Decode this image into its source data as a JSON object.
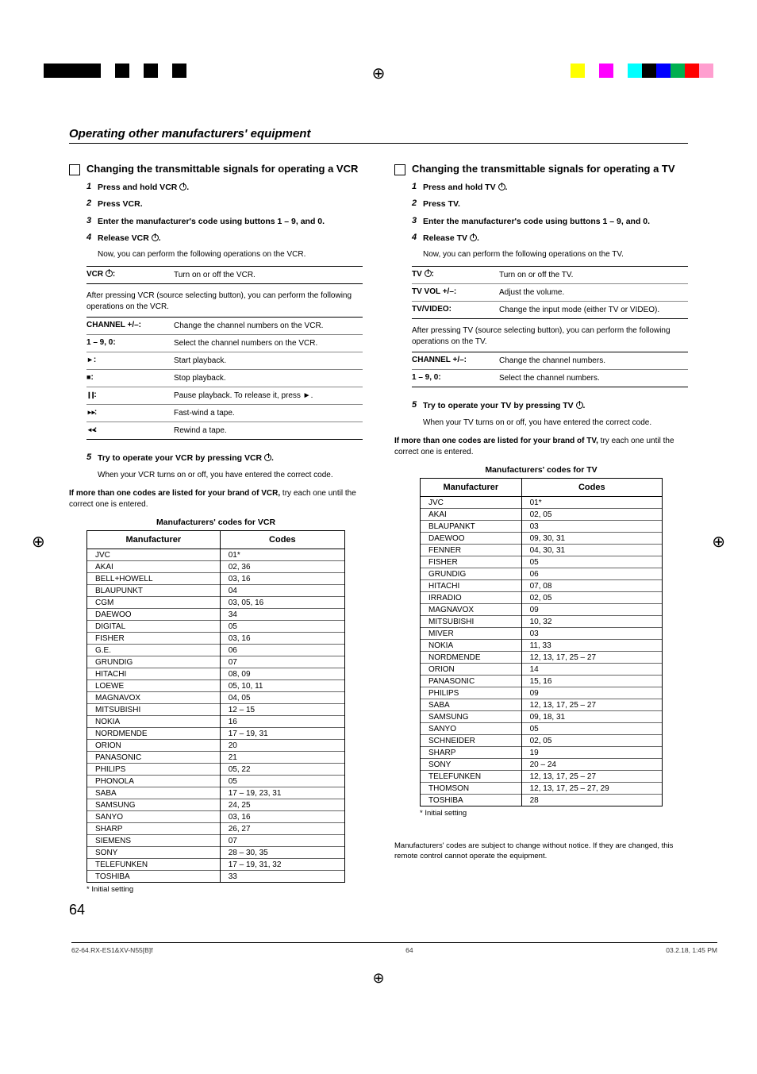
{
  "page": {
    "header": "Operating other manufacturers' equipment",
    "number": "64",
    "footer_file": "62-64.RX-ES1&XV-N55[B]f",
    "footer_page": "64",
    "footer_date": "03.2.18, 1:45 PM"
  },
  "print_bar_left_colors": [
    "#000000",
    "#000000",
    "#000000",
    "#000000",
    "#ffffff",
    "#000000",
    "#ffffff",
    "#000000",
    "#ffffff",
    "#000000"
  ],
  "print_bar_right_colors": [
    "#ffff00",
    "#ffffff",
    "#ff00ff",
    "#ffffff",
    "#00ffff",
    "#000000",
    "#0000ff",
    "#00b050",
    "#ff0000",
    "#ff9ecf"
  ],
  "vcr": {
    "title": "Changing the transmittable signals for operating a VCR",
    "steps": [
      {
        "n": "1",
        "bold": "Press and hold VCR ",
        "icon": "pwr",
        "tail": "."
      },
      {
        "n": "2",
        "bold": "Press VCR."
      },
      {
        "n": "3",
        "bold": "Enter the manufacturer's code using buttons 1 – 9, and 0."
      },
      {
        "n": "4",
        "bold": "Release VCR ",
        "icon": "pwr",
        "tail": "."
      }
    ],
    "after_release": "Now, you can perform the following operations on the VCR.",
    "primary_rows": [
      {
        "k": "VCR ",
        "icon": "pwr",
        "tail": ":",
        "v": "Turn on or off the VCR."
      }
    ],
    "after_press_note": "After pressing VCR (source selecting button), you can perform the following operations on the VCR.",
    "secondary_rows": [
      {
        "k": "CHANNEL +/–:",
        "v": "Change the channel numbers on the VCR."
      },
      {
        "k": "1 – 9, 0:",
        "v": "Select the channel numbers on the VCR."
      },
      {
        "icon": "play",
        "tail": ":",
        "v": "Start playback."
      },
      {
        "icon": "stop",
        "tail": ":",
        "v": "Stop playback."
      },
      {
        "icon": "pause",
        "tail": ":",
        "v": "Pause playback. To release it, press ►."
      },
      {
        "icon": "ff",
        "tail": ":",
        "v": "Fast-wind a tape."
      },
      {
        "icon": "rw",
        "tail": ":",
        "v": "Rewind a tape."
      }
    ],
    "try_step": {
      "n": "5",
      "bold": "Try to operate your VCR by pressing VCR ",
      "icon": "pwr",
      "tail": "."
    },
    "try_note": "When your VCR turns on or off, you have entered the correct code.",
    "multi_note_bold": "If more than one codes are listed for your brand of VCR,",
    "multi_note_rest": " try each one until the correct one is entered.",
    "table_title": "Manufacturers' codes for VCR",
    "table_headers": [
      "Manufacturer",
      "Codes"
    ],
    "table_rows": [
      [
        "JVC",
        "01*"
      ],
      [
        "AKAI",
        "02, 36"
      ],
      [
        "BELL+HOWELL",
        "03, 16"
      ],
      [
        "BLAUPUNKT",
        "04"
      ],
      [
        "CGM",
        "03, 05, 16"
      ],
      [
        "DAEWOO",
        "34"
      ],
      [
        "DIGITAL",
        "05"
      ],
      [
        "FISHER",
        "03, 16"
      ],
      [
        "G.E.",
        "06"
      ],
      [
        "GRUNDIG",
        "07"
      ],
      [
        "HITACHI",
        "08, 09"
      ],
      [
        "LOEWE",
        "05, 10, 11"
      ],
      [
        "MAGNAVOX",
        "04, 05"
      ],
      [
        "MITSUBISHI",
        "12 – 15"
      ],
      [
        "NOKIA",
        "16"
      ],
      [
        "NORDMENDE",
        "17 – 19, 31"
      ],
      [
        "ORION",
        "20"
      ],
      [
        "PANASONIC",
        "21"
      ],
      [
        "PHILIPS",
        "05, 22"
      ],
      [
        "PHONOLA",
        "05"
      ],
      [
        "SABA",
        "17 – 19, 23, 31"
      ],
      [
        "SAMSUNG",
        "24, 25"
      ],
      [
        "SANYO",
        "03, 16"
      ],
      [
        "SHARP",
        "26, 27"
      ],
      [
        "SIEMENS",
        "07"
      ],
      [
        "SONY",
        "28 – 30, 35"
      ],
      [
        "TELEFUNKEN",
        "17 – 19, 31, 32"
      ],
      [
        "TOSHIBA",
        "33"
      ]
    ],
    "initial_setting": "* Initial setting"
  },
  "tv": {
    "title": "Changing the transmittable signals for operating a TV",
    "steps": [
      {
        "n": "1",
        "bold": "Press and hold TV ",
        "icon": "pwr",
        "tail": "."
      },
      {
        "n": "2",
        "bold": "Press TV."
      },
      {
        "n": "3",
        "bold": "Enter the manufacturer's code using buttons 1 – 9, and 0."
      },
      {
        "n": "4",
        "bold": "Release TV ",
        "icon": "pwr",
        "tail": "."
      }
    ],
    "after_release": "Now, you can perform the following operations on the TV.",
    "primary_rows": [
      {
        "k": "TV ",
        "icon": "pwr",
        "tail": ":",
        "v": "Turn on or off the TV."
      },
      {
        "k": "TV VOL +/–:",
        "v": "Adjust the volume."
      },
      {
        "k": "TV/VIDEO:",
        "v": "Change the input mode (either TV or VIDEO)."
      }
    ],
    "after_press_note": "After pressing TV (source selecting button), you can perform the following operations on the TV.",
    "secondary_rows": [
      {
        "k": "CHANNEL +/–:",
        "v": "Change the channel numbers."
      },
      {
        "k": "1 – 9, 0:",
        "v": "Select the channel numbers."
      }
    ],
    "try_step": {
      "n": "5",
      "bold": "Try to operate your TV by pressing TV ",
      "icon": "pwr",
      "tail": "."
    },
    "try_note": "When your TV turns on or off, you have entered the correct code.",
    "multi_note_bold": "If more than one codes are listed for your brand of TV,",
    "multi_note_rest": " try each one until the correct one is entered.",
    "table_title": "Manufacturers' codes for TV",
    "table_headers": [
      "Manufacturer",
      "Codes"
    ],
    "table_rows": [
      [
        "JVC",
        "01*"
      ],
      [
        "AKAI",
        "02, 05"
      ],
      [
        "BLAUPANKT",
        "03"
      ],
      [
        "DAEWOO",
        "09, 30, 31"
      ],
      [
        "FENNER",
        "04, 30, 31"
      ],
      [
        "FISHER",
        "05"
      ],
      [
        "GRUNDIG",
        "06"
      ],
      [
        "HITACHI",
        "07, 08"
      ],
      [
        "IRRADIO",
        "02, 05"
      ],
      [
        "MAGNAVOX",
        "09"
      ],
      [
        "MITSUBISHI",
        "10, 32"
      ],
      [
        "MIVER",
        "03"
      ],
      [
        "NOKIA",
        "11, 33"
      ],
      [
        "NORDMENDE",
        "12, 13, 17, 25 – 27"
      ],
      [
        "ORION",
        "14"
      ],
      [
        "PANASONIC",
        "15, 16"
      ],
      [
        "PHILIPS",
        "09"
      ],
      [
        "SABA",
        "12, 13, 17, 25 – 27"
      ],
      [
        "SAMSUNG",
        "09, 18, 31"
      ],
      [
        "SANYO",
        "05"
      ],
      [
        "SCHNEIDER",
        "02, 05"
      ],
      [
        "SHARP",
        "19"
      ],
      [
        "SONY",
        "20 – 24"
      ],
      [
        "TELEFUNKEN",
        "12, 13, 17, 25 – 27"
      ],
      [
        "THOMSON",
        "12, 13, 17, 25 – 27, 29"
      ],
      [
        "TOSHIBA",
        "28"
      ]
    ],
    "initial_setting": "* Initial setting",
    "bottom_note": "Manufacturers' codes are subject to change without notice. If they are changed, this remote control cannot operate the equipment."
  }
}
